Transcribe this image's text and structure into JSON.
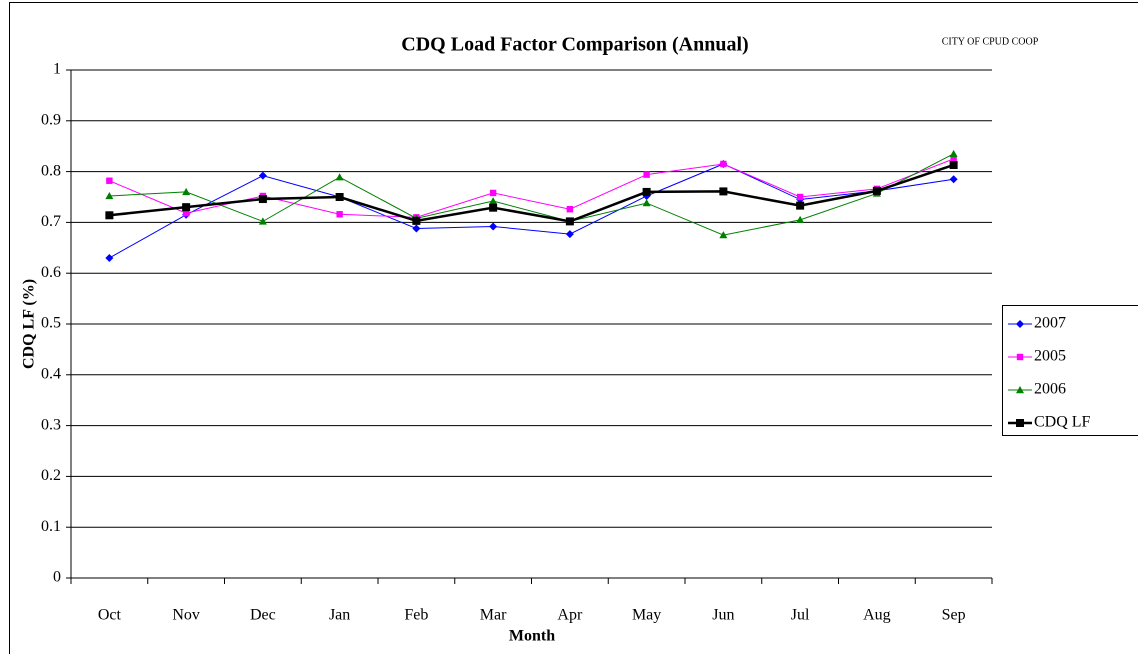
{
  "chart_data": {
    "type": "line",
    "title": "CDQ Load Factor Comparison (Annual)",
    "annotation": "CITY OF CPUD COOP",
    "x_label": "Month",
    "y_label": "CDQ LF (%)",
    "categories": [
      "Oct",
      "Nov",
      "Dec",
      "Jan",
      "Feb",
      "Mar",
      "Apr",
      "May",
      "Jun",
      "Jul",
      "Aug",
      "Sep"
    ],
    "series": [
      {
        "name": "2007",
        "color": "#0000ff",
        "marker": "diamond",
        "line_width": 1,
        "values": [
          0.63,
          0.715,
          0.792,
          0.75,
          0.688,
          0.692,
          0.677,
          0.752,
          0.815,
          0.745,
          0.762,
          0.785
        ]
      },
      {
        "name": "2005",
        "color": "#ff00ff",
        "marker": "square",
        "line_width": 1,
        "values": [
          0.782,
          0.718,
          0.752,
          0.716,
          0.71,
          0.758,
          0.726,
          0.794,
          0.815,
          0.75,
          0.766,
          0.825
        ]
      },
      {
        "name": "2006",
        "color": "#008000",
        "marker": "triangle",
        "line_width": 1,
        "values": [
          0.752,
          0.76,
          0.702,
          0.789,
          0.708,
          0.742,
          0.702,
          0.738,
          0.675,
          0.705,
          0.757,
          0.835
        ]
      },
      {
        "name": "CDQ LF",
        "color": "#000000",
        "marker": "square",
        "line_width": 2.5,
        "values": [
          0.714,
          0.73,
          0.746,
          0.75,
          0.703,
          0.729,
          0.702,
          0.76,
          0.761,
          0.733,
          0.762,
          0.813
        ]
      }
    ],
    "ylim": [
      0,
      1
    ],
    "yticks": [
      0,
      0.1,
      0.2,
      0.3,
      0.4,
      0.5,
      0.6,
      0.7,
      0.8,
      0.9,
      1
    ],
    "grid": true,
    "legend": "right"
  }
}
